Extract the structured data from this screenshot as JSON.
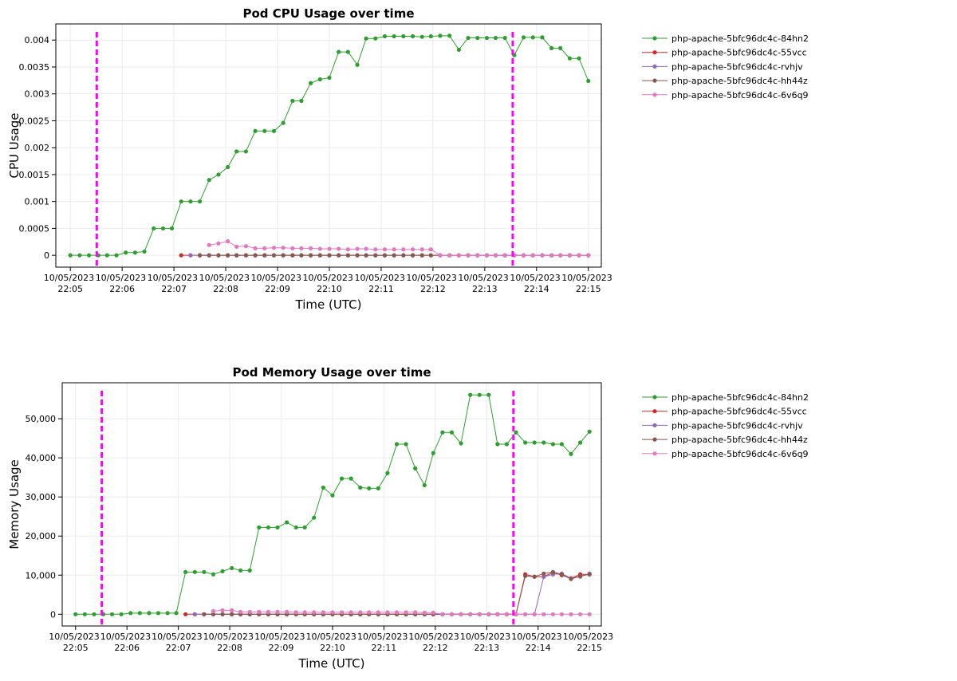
{
  "chart_data": [
    {
      "type": "line",
      "title": "Pod CPU Usage over time",
      "xlabel": "Time (UTC)",
      "ylabel": "CPU Usage",
      "grid": true,
      "legend": "right",
      "x": [
        1325.0,
        1325.18,
        1325.36,
        1325.54,
        1325.71,
        1325.89,
        1326.07,
        1326.25,
        1326.43,
        1326.61,
        1326.79,
        1326.96,
        1327.14,
        1327.32,
        1327.5,
        1327.68,
        1327.86,
        1328.04,
        1328.21,
        1328.39,
        1328.57,
        1328.75,
        1328.93,
        1329.11,
        1329.29,
        1329.46,
        1329.64,
        1329.82,
        1330.0,
        1330.18,
        1330.36,
        1330.54,
        1330.71,
        1330.89,
        1331.07,
        1331.25,
        1331.43,
        1331.61,
        1331.79,
        1331.96,
        1332.14,
        1332.32,
        1332.5,
        1332.68,
        1332.86,
        1333.04,
        1333.21,
        1333.39,
        1333.57,
        1333.75,
        1333.93,
        1334.11,
        1334.29,
        1334.46,
        1334.64,
        1334.82,
        1335.0
      ],
      "xlim": [
        1324.72,
        1335.25
      ],
      "xticks": [
        {
          "value": 1325,
          "label": "10/05/2023 22:05"
        },
        {
          "value": 1326,
          "label": "10/05/2023 22:06"
        },
        {
          "value": 1327,
          "label": "10/05/2023 22:07"
        },
        {
          "value": 1328,
          "label": "10/05/2023 22:08"
        },
        {
          "value": 1329,
          "label": "10/05/2023 22:09"
        },
        {
          "value": 1330,
          "label": "10/05/2023 22:10"
        },
        {
          "value": 1331,
          "label": "10/05/2023 22:11"
        },
        {
          "value": 1332,
          "label": "10/05/2023 22:12"
        },
        {
          "value": 1333,
          "label": "10/05/2023 22:13"
        },
        {
          "value": 1334,
          "label": "10/05/2023 22:14"
        },
        {
          "value": 1335,
          "label": "10/05/2023 22:15"
        }
      ],
      "ylim": [
        -0.00022,
        0.0043
      ],
      "yticks": [
        0,
        0.0005,
        0.001,
        0.0015,
        0.002,
        0.0025,
        0.003,
        0.0035,
        0.004
      ],
      "vlines": [
        1325.51,
        1333.54
      ],
      "vline_color": "#ff00ff",
      "series": [
        {
          "name": "php-apache-5bfc96dc4c-84hn2",
          "color": "#2ca02c",
          "values": [
            0,
            0,
            0,
            0,
            0,
            0,
            5e-05,
            5e-05,
            7e-05,
            0.0005,
            0.0005,
            0.0005,
            0.001,
            0.001,
            0.001,
            0.0014,
            0.0015,
            0.00164,
            0.00193,
            0.00193,
            0.00231,
            0.00231,
            0.00231,
            0.00246,
            0.00287,
            0.00287,
            0.0032,
            0.00327,
            0.0033,
            0.00378,
            0.00378,
            0.00354,
            0.00403,
            0.00403,
            0.00407,
            0.00407,
            0.00407,
            0.00407,
            0.00406,
            0.00407,
            0.00408,
            0.00408,
            0.00382,
            0.00404,
            0.00404,
            0.00404,
            0.00404,
            0.00404,
            0.00372,
            0.00405,
            0.00405,
            0.00405,
            0.00385,
            0.00385,
            0.00366,
            0.00366,
            0.00324
          ]
        },
        {
          "name": "php-apache-5bfc96dc4c-55vcc",
          "color": "#d62728",
          "values": [
            null,
            null,
            null,
            null,
            null,
            null,
            null,
            null,
            null,
            null,
            null,
            null,
            0,
            0,
            0,
            0,
            0,
            0,
            0,
            0,
            0,
            0,
            0,
            0,
            0,
            0,
            0,
            0,
            0,
            0,
            0,
            0,
            0,
            0,
            0,
            0,
            0,
            0,
            0,
            0,
            0,
            0,
            0,
            0,
            0,
            0,
            0,
            0,
            0,
            0,
            0,
            0,
            0,
            0,
            0,
            0,
            0
          ]
        },
        {
          "name": "php-apache-5bfc96dc4c-rvhjv",
          "color": "#9467bd",
          "values": [
            null,
            null,
            null,
            null,
            null,
            null,
            null,
            null,
            null,
            null,
            null,
            null,
            null,
            0,
            0,
            0,
            0,
            0,
            0,
            0,
            0,
            0,
            0,
            0,
            0,
            0,
            0,
            0,
            0,
            0,
            0,
            0,
            0,
            0,
            0,
            0,
            0,
            0,
            0,
            0,
            0,
            0,
            0,
            0,
            0,
            0,
            0,
            0,
            0,
            0,
            0,
            0,
            0,
            0,
            0,
            0,
            0
          ]
        },
        {
          "name": "php-apache-5bfc96dc4c-hh44z",
          "color": "#8c564b",
          "values": [
            null,
            null,
            null,
            null,
            null,
            null,
            null,
            null,
            null,
            null,
            null,
            null,
            null,
            null,
            0,
            0,
            0,
            0,
            0,
            0,
            0,
            0,
            0,
            0,
            0,
            0,
            0,
            0,
            0,
            0,
            0,
            0,
            0,
            0,
            0,
            0,
            0,
            0,
            0,
            0,
            0,
            0,
            0,
            0,
            0,
            0,
            0,
            0,
            0,
            0,
            0,
            0,
            0,
            0,
            0,
            0,
            0
          ]
        },
        {
          "name": "php-apache-5bfc96dc4c-6v6q9",
          "color": "#e377c2",
          "values": [
            null,
            null,
            null,
            null,
            null,
            null,
            null,
            null,
            null,
            null,
            null,
            null,
            null,
            null,
            null,
            0.00019,
            0.00022,
            0.00026,
            0.00016,
            0.00017,
            0.00013,
            0.00013,
            0.00014,
            0.00014,
            0.00013,
            0.00013,
            0.00013,
            0.00012,
            0.00012,
            0.00012,
            0.00011,
            0.00012,
            0.00012,
            0.00011,
            0.00011,
            0.00011,
            0.00011,
            0.00011,
            0.00011,
            0.00011,
            0,
            0,
            0,
            0,
            0,
            0,
            0,
            0,
            0,
            0,
            0,
            0,
            0,
            0,
            0,
            0,
            0
          ]
        }
      ]
    },
    {
      "type": "line",
      "title": "Pod Memory Usage over time",
      "xlabel": "Time (UTC)",
      "ylabel": "Memory Usage",
      "grid": true,
      "legend": "right",
      "x": [
        1325.0,
        1325.18,
        1325.36,
        1325.54,
        1325.71,
        1325.89,
        1326.07,
        1326.25,
        1326.43,
        1326.61,
        1326.79,
        1326.96,
        1327.14,
        1327.32,
        1327.5,
        1327.68,
        1327.86,
        1328.04,
        1328.21,
        1328.39,
        1328.57,
        1328.75,
        1328.93,
        1329.11,
        1329.29,
        1329.46,
        1329.64,
        1329.82,
        1330.0,
        1330.18,
        1330.36,
        1330.54,
        1330.71,
        1330.89,
        1331.07,
        1331.25,
        1331.43,
        1331.61,
        1331.79,
        1331.96,
        1332.14,
        1332.32,
        1332.5,
        1332.68,
        1332.86,
        1333.04,
        1333.21,
        1333.39,
        1333.57,
        1333.75,
        1333.93,
        1334.11,
        1334.29,
        1334.46,
        1334.64,
        1334.82,
        1335.0
      ],
      "xlim": [
        1324.74,
        1335.23
      ],
      "xticks": [
        {
          "value": 1325,
          "label": "10/05/2023 22:05"
        },
        {
          "value": 1326,
          "label": "10/05/2023 22:06"
        },
        {
          "value": 1327,
          "label": "10/05/2023 22:07"
        },
        {
          "value": 1328,
          "label": "10/05/2023 22:08"
        },
        {
          "value": 1329,
          "label": "10/05/2023 22:09"
        },
        {
          "value": 1330,
          "label": "10/05/2023 22:10"
        },
        {
          "value": 1331,
          "label": "10/05/2023 22:11"
        },
        {
          "value": 1332,
          "label": "10/05/2023 22:12"
        },
        {
          "value": 1333,
          "label": "10/05/2023 22:13"
        },
        {
          "value": 1334,
          "label": "10/05/2023 22:14"
        },
        {
          "value": 1335,
          "label": "10/05/2023 22:15"
        }
      ],
      "ylim": [
        -3000,
        59200
      ],
      "yticks": [
        0,
        {
          "value": 10000,
          "label": "10,000"
        },
        {
          "value": 20000,
          "label": "20,000"
        },
        {
          "value": 30000,
          "label": "30,000"
        },
        {
          "value": 40000,
          "label": "40,000"
        },
        {
          "value": 50000,
          "label": "50,000"
        }
      ],
      "vlines": [
        1325.51,
        1333.52
      ],
      "vline_color": "#ff00ff",
      "series": [
        {
          "name": "php-apache-5bfc96dc4c-84hn2",
          "color": "#2ca02c",
          "values": [
            0,
            0,
            0,
            0,
            0,
            0,
            300,
            300,
            300,
            300,
            300,
            300,
            10800,
            10800,
            10800,
            10200,
            11000,
            11800,
            11200,
            11200,
            22200,
            22200,
            22200,
            23500,
            22200,
            22200,
            24700,
            32400,
            30400,
            34700,
            34700,
            32400,
            32200,
            32200,
            36100,
            43500,
            43500,
            37300,
            33000,
            41200,
            46500,
            46500,
            43700,
            56100,
            56100,
            56100,
            43500,
            43500,
            46500,
            43900,
            43900,
            43900,
            43500,
            43500,
            41000,
            43900,
            46700
          ]
        },
        {
          "name": "php-apache-5bfc96dc4c-55vcc",
          "color": "#d62728",
          "values": [
            null,
            null,
            null,
            null,
            null,
            null,
            null,
            null,
            null,
            null,
            null,
            null,
            0,
            0,
            0,
            0,
            0,
            0,
            0,
            0,
            0,
            0,
            0,
            0,
            0,
            0,
            0,
            0,
            0,
            0,
            0,
            0,
            0,
            0,
            0,
            0,
            0,
            0,
            0,
            0,
            0,
            0,
            0,
            0,
            0,
            0,
            0,
            0,
            0,
            10200,
            9600,
            9600,
            10700,
            10000,
            9200,
            10200,
            10200
          ]
        },
        {
          "name": "php-apache-5bfc96dc4c-rvhjv",
          "color": "#9467bd",
          "values": [
            null,
            null,
            null,
            null,
            null,
            null,
            null,
            null,
            null,
            null,
            null,
            null,
            null,
            0,
            0,
            0,
            0,
            0,
            0,
            0,
            0,
            0,
            0,
            0,
            0,
            0,
            0,
            0,
            0,
            0,
            0,
            0,
            0,
            0,
            0,
            0,
            0,
            0,
            0,
            0,
            0,
            0,
            0,
            0,
            0,
            0,
            0,
            0,
            0,
            0,
            0,
            9600,
            10200,
            10400,
            9200,
            9600,
            10400
          ]
        },
        {
          "name": "php-apache-5bfc96dc4c-hh44z",
          "color": "#8c564b",
          "values": [
            null,
            null,
            null,
            null,
            null,
            null,
            null,
            null,
            null,
            null,
            null,
            null,
            null,
            null,
            0,
            0,
            0,
            0,
            0,
            0,
            0,
            0,
            0,
            0,
            0,
            0,
            0,
            0,
            0,
            0,
            0,
            0,
            0,
            0,
            0,
            0,
            0,
            0,
            0,
            0,
            0,
            0,
            0,
            0,
            0,
            0,
            0,
            0,
            0,
            9800,
            9600,
            10400,
            10800,
            10200,
            9000,
            9800,
            10200
          ]
        },
        {
          "name": "php-apache-5bfc96dc4c-6v6q9",
          "color": "#e377c2",
          "values": [
            null,
            null,
            null,
            null,
            null,
            null,
            null,
            null,
            null,
            null,
            null,
            null,
            null,
            null,
            null,
            800,
            1000,
            1000,
            600,
            600,
            600,
            600,
            600,
            600,
            500,
            500,
            500,
            500,
            500,
            500,
            500,
            500,
            500,
            500,
            500,
            500,
            500,
            500,
            400,
            400,
            0,
            0,
            0,
            0,
            0,
            0,
            0,
            0,
            0,
            0,
            0,
            0,
            0,
            0,
            0,
            0,
            0
          ]
        }
      ]
    }
  ]
}
